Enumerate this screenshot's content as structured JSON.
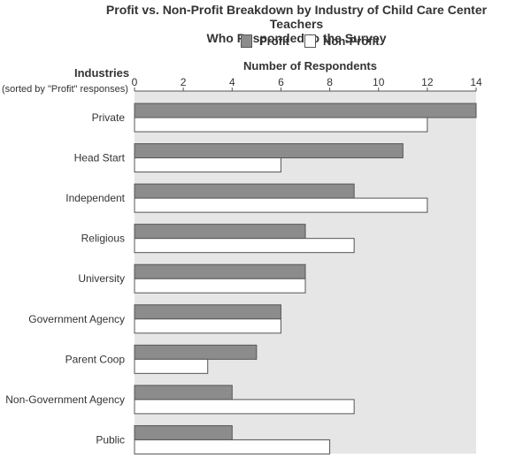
{
  "chart_data": {
    "type": "bar",
    "orientation": "horizontal",
    "title_line1": "Profit vs. Non-Profit Breakdown by Industry of Child Care Center Teachers",
    "title_line2": "Who Responded to the Survey",
    "xlabel": "Number of Respondents",
    "ylabel": "Industries",
    "ylabel_note": "(sorted by \"Profit\" responses)",
    "xlim": [
      0,
      14
    ],
    "xticks": [
      0,
      2,
      4,
      6,
      8,
      10,
      12,
      14
    ],
    "grid": false,
    "legend_position": "top",
    "categories": [
      "Private",
      "Head Start",
      "Independent",
      "Religious",
      "University",
      "Government Agency",
      "Parent Coop",
      "Non-Government Agency",
      "Public"
    ],
    "series": [
      {
        "name": "Profit",
        "color": "#8c8c8c",
        "values": [
          14,
          11,
          9,
          7,
          7,
          6,
          5,
          4,
          4
        ]
      },
      {
        "name": "Non-Profit",
        "color": "#ffffff",
        "values": [
          12,
          6,
          12,
          9,
          7,
          6,
          3,
          9,
          8
        ]
      }
    ],
    "plot_background": "#e6e6e7"
  }
}
